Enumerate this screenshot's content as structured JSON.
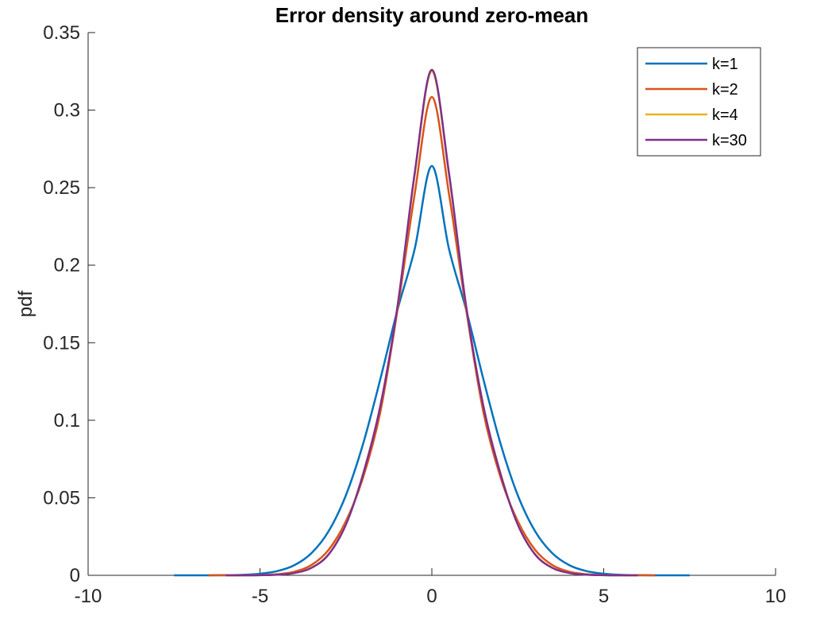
{
  "chart_data": {
    "type": "line",
    "title": "Error density around zero-mean",
    "xlabel": "",
    "ylabel": "pdf",
    "xlim": [
      -10,
      10
    ],
    "ylim": [
      0,
      0.35
    ],
    "xticks": [
      -10,
      -5,
      0,
      5,
      10
    ],
    "xtick_labels": [
      "-10",
      "-5",
      "0",
      "5",
      "10"
    ],
    "yticks": [
      0,
      0.05,
      0.1,
      0.15,
      0.2,
      0.25,
      0.3,
      0.35
    ],
    "ytick_labels": [
      "0",
      "0.05",
      "0.1",
      "0.15",
      "0.2",
      "0.25",
      "0.3",
      "0.35"
    ],
    "grid": false,
    "legend_position": "top-right",
    "series": [
      {
        "name": "k=1",
        "color": "#0072BD",
        "x": [
          -7.5,
          -7,
          -6.5,
          -6,
          -5.5,
          -5,
          -4.5,
          -4,
          -3.5,
          -3,
          -2.5,
          -2,
          -1.5,
          -1,
          -0.5,
          0,
          0.5,
          1,
          1.5,
          2,
          2.5,
          3,
          3.5,
          4,
          4.5,
          5,
          5.5,
          6,
          6.5,
          7,
          7.5
        ],
        "y": [
          0.0,
          1e-05,
          3e-05,
          0.00011,
          0.00035,
          0.00102,
          0.00271,
          0.00654,
          0.01434,
          0.02856,
          0.05164,
          0.08479,
          0.12642,
          0.17116,
          0.21037,
          0.264,
          0.21037,
          0.17116,
          0.12642,
          0.08479,
          0.05164,
          0.02856,
          0.01434,
          0.00654,
          0.00271,
          0.00102,
          0.00035,
          0.00011,
          3e-05,
          1e-05,
          0.0
        ]
      },
      {
        "name": "k=2",
        "color": "#D95319",
        "x": [
          -6.5,
          -6,
          -5.5,
          -5,
          -4.5,
          -4,
          -3.5,
          -3,
          -2.5,
          -2,
          -1.5,
          -1,
          -0.5,
          0,
          0.5,
          1,
          1.5,
          2,
          2.5,
          3,
          3.5,
          4,
          4.5,
          5,
          5.5,
          6,
          6.5
        ],
        "y": [
          0.0,
          1e-05,
          4e-05,
          0.00017,
          0.00068,
          0.00231,
          0.00668,
          0.01653,
          0.03494,
          0.06312,
          0.1052,
          0.1711,
          0.2458,
          0.3085,
          0.2458,
          0.1711,
          0.1052,
          0.06312,
          0.03494,
          0.01653,
          0.00668,
          0.00231,
          0.00068,
          0.00017,
          4e-05,
          1e-05,
          0.0
        ]
      },
      {
        "name": "k=4",
        "color": "#EDB120",
        "x": [
          -6,
          -5.5,
          -5,
          -4.5,
          -4,
          -3.5,
          -3,
          -2.5,
          -2,
          -1.5,
          -1,
          -0.5,
          0,
          0.5,
          1,
          1.5,
          2,
          2.5,
          3,
          3.5,
          4,
          4.5,
          5,
          5.5,
          6
        ],
        "y": [
          0.0,
          2e-05,
          0.0001,
          0.00042,
          0.00155,
          0.00496,
          0.01375,
          0.03303,
          0.06555,
          0.1092,
          0.1732,
          0.2583,
          0.325,
          0.2583,
          0.1732,
          0.1092,
          0.06555,
          0.03303,
          0.01375,
          0.00496,
          0.00155,
          0.00042,
          0.0001,
          2e-05,
          0.0
        ]
      },
      {
        "name": "k=30",
        "color": "#7E2F8E",
        "x": [
          -6,
          -5.5,
          -5,
          -4.5,
          -4,
          -3.5,
          -3,
          -2.5,
          -2,
          -1.5,
          -1,
          -0.5,
          0,
          0.5,
          1,
          1.5,
          2,
          2.5,
          3,
          3.5,
          4,
          4.5,
          5,
          5.5,
          6
        ],
        "y": [
          0.0,
          2e-05,
          9e-05,
          0.0004,
          0.0015,
          0.00485,
          0.01355,
          0.0327,
          0.0652,
          0.109,
          0.1733,
          0.2592,
          0.326,
          0.2592,
          0.1733,
          0.109,
          0.0652,
          0.0327,
          0.01355,
          0.00485,
          0.0015,
          0.0004,
          9e-05,
          2e-05,
          0.0
        ]
      }
    ]
  }
}
